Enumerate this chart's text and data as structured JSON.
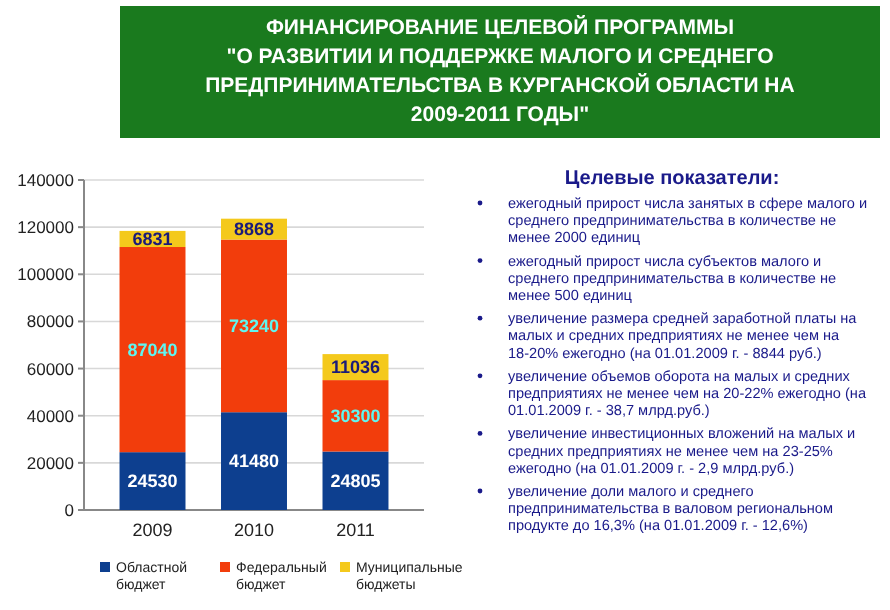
{
  "chart_data": [
    {
      "type": "bar",
      "title": "ФИНАНСИРОВАНИЕ ЦЕЛЕВОЙ ПРОГРАММЫ\n\"О РАЗВИТИИ И ПОДДЕРЖКЕ МАЛОГО И СРЕДНЕГО\nПРЕДПРИНИМАТЕЛЬСТВА В КУРГАНСКОЙ ОБЛАСТИ НА\n2009-2011 ГОДЫ\"",
      "categories": [
        "2009",
        "2010",
        "2011"
      ],
      "stacked": true,
      "series": [
        {
          "name": "Областной бюджет",
          "color": "#0d3f8f",
          "values": [
            24530,
            41480,
            24805
          ]
        },
        {
          "name": "Федеральный бюджет",
          "color": "#f23d0c",
          "values": [
            87040,
            73240,
            30300
          ]
        },
        {
          "name": "Муниципальные бюджеты",
          "color": "#f4c91c",
          "values": [
            6831,
            8868,
            11036
          ]
        }
      ],
      "ylim": [
        0,
        140000
      ],
      "yticks": [
        0,
        20000,
        40000,
        60000,
        80000,
        100000,
        120000,
        140000
      ],
      "grid": "y",
      "legend": "bottom",
      "data_labels": true
    },
    {
      "type": "other",
      "title": "Целевые показатели:",
      "annotations": [
        "ежегодный прирост числа занятых в сфере малого и среднего предпринимательства в количестве не менее 2000 единиц",
        "ежегодный прирост числа субъектов малого и среднего предпринимательства в количестве не менее 500 единиц",
        "увеличение размера средней заработной платы на малых и средних предприятиях не менее чем на 18-20% ежегодно (на 01.01.2009 г. - 8844 руб.)",
        "увеличение объемов оборота на малых и средних предприятиях не менее чем на 20-22% ежегодно (на 01.01.2009 г. - 38,7 млрд.руб.)",
        "увеличение инвестиционных вложений на малых и средних предприятиях не менее чем на 23-25% ежегодно (на 01.01.2009 г. - 2,9 млрд.руб.)",
        "увеличение доли малого и среднего предпринимательства в валовом региональном продукте до 16,3% (на 01.01.2009 г. - 12,6%)"
      ]
    }
  ]
}
